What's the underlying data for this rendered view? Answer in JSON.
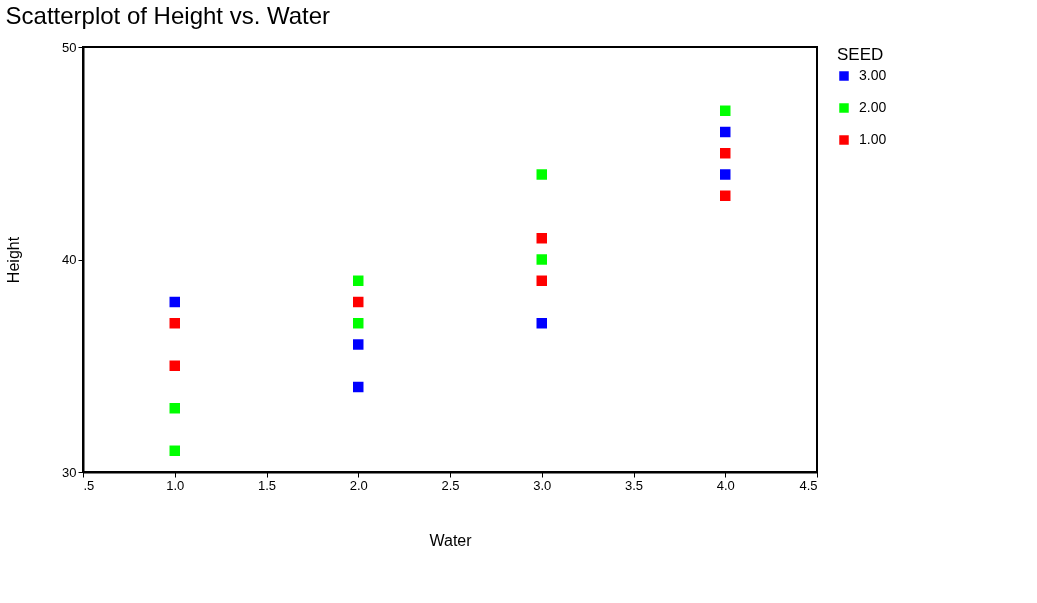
{
  "chart_data": {
    "type": "scatter",
    "title": "Scatterplot of Height vs. Water",
    "xlabel": "Water",
    "ylabel": "Height",
    "legend_title": "SEED",
    "series": [
      {
        "name": "3.00",
        "color": "#0000ff",
        "x": [
          1,
          2,
          2,
          3,
          4,
          4
        ],
        "values": [
          38,
          36,
          34,
          37,
          46,
          44
        ]
      },
      {
        "name": "2.00",
        "color": "#00ff00",
        "x": [
          1,
          1,
          2,
          2,
          3,
          3,
          4
        ],
        "values": [
          33,
          31,
          39,
          37,
          44,
          40,
          47
        ]
      },
      {
        "name": "1.00",
        "color": "#ff0000",
        "x": [
          1,
          1,
          2,
          3,
          3,
          4,
          4
        ],
        "values": [
          37,
          35,
          38,
          41,
          39,
          45,
          43
        ]
      }
    ],
    "xlim": [
      0.5,
      4.5
    ],
    "xticks": [
      {
        "value": 0.5,
        "label": ".5"
      },
      {
        "value": 1,
        "label": "1.0"
      },
      {
        "value": 1.5,
        "label": "1.5"
      },
      {
        "value": 2,
        "label": "2.0"
      },
      {
        "value": 2.5,
        "label": "2.5"
      },
      {
        "value": 3,
        "label": "3.0"
      },
      {
        "value": 3.5,
        "label": "3.5"
      },
      {
        "value": 4,
        "label": "4.0"
      },
      {
        "value": 4.5,
        "label": "4.5"
      }
    ],
    "ylim": [
      30,
      50
    ],
    "yticks": [
      30,
      40,
      50
    ],
    "grid": false,
    "legend": "right",
    "marker": "square"
  }
}
